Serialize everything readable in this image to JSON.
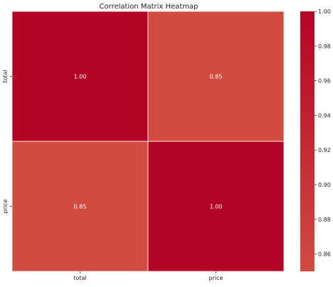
{
  "chart_data": {
    "type": "heatmap",
    "title": "Correlation Matrix Heatmap",
    "x_categories": [
      "total",
      "price"
    ],
    "y_categories": [
      "total",
      "price"
    ],
    "values": [
      [
        1.0,
        0.85
      ],
      [
        0.85,
        1.0
      ]
    ],
    "cell_labels": [
      [
        "1.00",
        "0.85"
      ],
      [
        "0.85",
        "1.00"
      ]
    ],
    "colorbar": {
      "min": 0.85,
      "max": 1.0,
      "ticks": [
        0.86,
        0.88,
        0.9,
        0.92,
        0.94,
        0.96,
        0.98,
        1.0
      ],
      "tick_labels": [
        "0.86",
        "0.88",
        "0.90",
        "0.92",
        "0.94",
        "0.96",
        "0.98",
        "1.00"
      ],
      "colors": {
        "low": "#d24b40",
        "high": "#b40426"
      }
    },
    "grid_line_color": "#ffffff",
    "label_color": "#ffffff"
  }
}
